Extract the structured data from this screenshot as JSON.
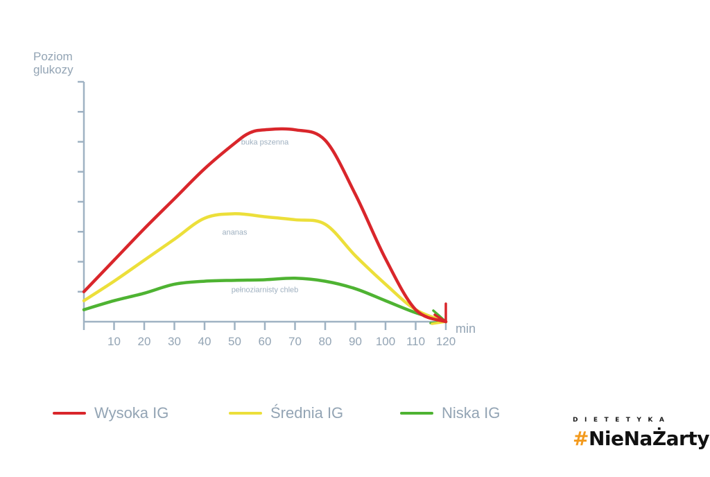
{
  "chart_data": {
    "type": "line",
    "ylabel": [
      "Poziom",
      "glukozy"
    ],
    "xlabel": "min",
    "x_ticks": [
      10,
      20,
      30,
      40,
      50,
      60,
      70,
      80,
      90,
      100,
      110,
      120
    ],
    "xlim": [
      0,
      120
    ],
    "ylim": [
      0,
      8
    ],
    "y_ticks_count": 8,
    "series": [
      {
        "name": "Wysoka IG",
        "color": "#d9262b",
        "label": "buka pszenna",
        "points": [
          [
            0,
            1.0
          ],
          [
            10,
            2.05
          ],
          [
            20,
            3.1
          ],
          [
            30,
            4.1
          ],
          [
            40,
            5.1
          ],
          [
            50,
            5.95
          ],
          [
            55,
            6.3
          ],
          [
            60,
            6.4
          ],
          [
            70,
            6.4
          ],
          [
            80,
            6.05
          ],
          [
            90,
            4.25
          ],
          [
            100,
            2.1
          ],
          [
            110,
            0.4
          ],
          [
            120,
            0.0
          ]
        ]
      },
      {
        "name": "Średnia IG",
        "color": "#ecdf3a",
        "label": "ananas",
        "points": [
          [
            0,
            0.7
          ],
          [
            10,
            1.35
          ],
          [
            20,
            2.05
          ],
          [
            30,
            2.75
          ],
          [
            40,
            3.45
          ],
          [
            50,
            3.6
          ],
          [
            60,
            3.5
          ],
          [
            70,
            3.4
          ],
          [
            80,
            3.25
          ],
          [
            90,
            2.2
          ],
          [
            100,
            1.25
          ],
          [
            110,
            0.4
          ],
          [
            120,
            0.0
          ]
        ]
      },
      {
        "name": "Niska IG",
        "color": "#4eb332",
        "label": "pełnoziarnisty chleb",
        "points": [
          [
            0,
            0.4
          ],
          [
            10,
            0.7
          ],
          [
            20,
            0.95
          ],
          [
            30,
            1.25
          ],
          [
            40,
            1.35
          ],
          [
            50,
            1.38
          ],
          [
            60,
            1.4
          ],
          [
            70,
            1.45
          ],
          [
            80,
            1.35
          ],
          [
            90,
            1.1
          ],
          [
            100,
            0.7
          ],
          [
            110,
            0.3
          ],
          [
            120,
            0.0
          ]
        ]
      }
    ]
  },
  "legend": [
    {
      "label": "Wysoka IG",
      "color": "#d9262b"
    },
    {
      "label": "Średnia IG",
      "color": "#ecdf3a"
    },
    {
      "label": "Niska IG",
      "color": "#4eb332"
    }
  ],
  "brand": {
    "top": "DIETETYKA",
    "hash": "#",
    "name": "NieNaŻarty"
  }
}
